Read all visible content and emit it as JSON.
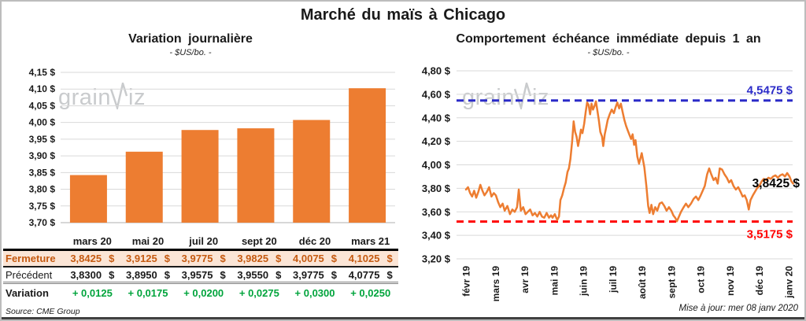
{
  "page": {
    "title": "Marché du maïs à Chicago",
    "update_note": "Mise à jour: mer 08 janv 2020",
    "watermark": {
      "prefix": "grain",
      "suffix": "iz"
    }
  },
  "colors": {
    "orange": "#ED7D31",
    "blue": "#2B2BC8",
    "red": "#FF0000",
    "green": "#00A43C",
    "fermeture_text": "#C55A11",
    "fermeture_bg": "#FBE5D6",
    "grid": "#D9D9D9",
    "axis": "#BFBFBF",
    "text": "#1a1a1a",
    "watermark": "#c9cbcd"
  },
  "chart_data": [
    {
      "type": "bar",
      "title": "Variation journalière",
      "subtitle": "- $US/bo. -",
      "categories": [
        "mars 20",
        "mai 20",
        "juil 20",
        "sept 20",
        "déc 20",
        "mars 21"
      ],
      "values": [
        3.8425,
        3.9125,
        3.9775,
        3.9825,
        4.0075,
        4.1025
      ],
      "ylim": [
        3.7,
        4.15
      ],
      "ytick_step": 0.05,
      "ytick_labels": [
        "4,15 $",
        "4,10 $",
        "4,05 $",
        "4,00 $",
        "3,95 $",
        "3,90 $",
        "3,85 $",
        "3,80 $",
        "3,75 $",
        "3,70 $"
      ],
      "grid": true,
      "legend": "none"
    },
    {
      "type": "line",
      "title": "Comportement échéance immédiate depuis 1 an",
      "subtitle": "- $US/bo. -",
      "x_tick_labels": [
        "févr 19",
        "mars 19",
        "avr 19",
        "mai 19",
        "juin 19",
        "juil 19",
        "août 19",
        "sept 19",
        "oct 19",
        "nov 19",
        "déc 19",
        "janv 20"
      ],
      "ylim": [
        3.2,
        4.8
      ],
      "ytick_step": 0.2,
      "ytick_labels": [
        "4,80 $",
        "4,60 $",
        "4,40 $",
        "4,20 $",
        "4,00 $",
        "3,80 $",
        "3,60 $",
        "3,40 $",
        "3,20 $"
      ],
      "grid": true,
      "legend": "none",
      "reference_lines": [
        {
          "name": "high",
          "value": 4.5475,
          "label": "4,5475 $",
          "position": "above"
        },
        {
          "name": "low",
          "value": 3.5175,
          "label": "3,5175 $",
          "position": "below"
        }
      ],
      "last_value": 3.8425,
      "last_value_label": "3,8425 $",
      "points": [
        [
          0.0,
          3.79
        ],
        [
          0.07,
          3.81
        ],
        [
          0.14,
          3.76
        ],
        [
          0.21,
          3.73
        ],
        [
          0.28,
          3.78
        ],
        [
          0.35,
          3.72
        ],
        [
          0.42,
          3.77
        ],
        [
          0.49,
          3.83
        ],
        [
          0.56,
          3.78
        ],
        [
          0.63,
          3.74
        ],
        [
          0.71,
          3.77
        ],
        [
          0.79,
          3.81
        ],
        [
          0.87,
          3.73
        ],
        [
          0.95,
          3.76
        ],
        [
          1.02,
          3.74
        ],
        [
          1.1,
          3.68
        ],
        [
          1.17,
          3.64
        ],
        [
          1.25,
          3.67
        ],
        [
          1.32,
          3.61
        ],
        [
          1.41,
          3.65
        ],
        [
          1.5,
          3.58
        ],
        [
          1.58,
          3.62
        ],
        [
          1.66,
          3.6
        ],
        [
          1.74,
          3.64
        ],
        [
          1.8,
          3.79
        ],
        [
          1.87,
          3.61
        ],
        [
          1.95,
          3.64
        ],
        [
          2.03,
          3.58
        ],
        [
          2.11,
          3.6
        ],
        [
          2.19,
          3.62
        ],
        [
          2.27,
          3.57
        ],
        [
          2.35,
          3.59
        ],
        [
          2.43,
          3.56
        ],
        [
          2.51,
          3.6
        ],
        [
          2.59,
          3.56
        ],
        [
          2.67,
          3.55
        ],
        [
          2.75,
          3.59
        ],
        [
          2.83,
          3.55
        ],
        [
          2.9,
          3.57
        ],
        [
          2.95,
          3.55
        ],
        [
          3.03,
          3.58
        ],
        [
          3.11,
          3.53
        ],
        [
          3.17,
          3.56
        ],
        [
          3.22,
          3.7
        ],
        [
          3.28,
          3.74
        ],
        [
          3.34,
          3.8
        ],
        [
          3.4,
          3.85
        ],
        [
          3.46,
          3.94
        ],
        [
          3.51,
          3.97
        ],
        [
          3.56,
          4.05
        ],
        [
          3.62,
          4.2
        ],
        [
          3.67,
          4.37
        ],
        [
          3.72,
          4.28
        ],
        [
          3.77,
          4.24
        ],
        [
          3.82,
          4.16
        ],
        [
          3.87,
          4.22
        ],
        [
          3.92,
          4.3
        ],
        [
          3.97,
          4.27
        ],
        [
          4.03,
          4.35
        ],
        [
          4.08,
          4.45
        ],
        [
          4.13,
          4.53
        ],
        [
          4.18,
          4.51
        ],
        [
          4.23,
          4.43
        ],
        [
          4.28,
          4.52
        ],
        [
          4.33,
          4.47
        ],
        [
          4.38,
          4.5
        ],
        [
          4.43,
          4.54
        ],
        [
          4.48,
          4.46
        ],
        [
          4.53,
          4.38
        ],
        [
          4.58,
          4.28
        ],
        [
          4.64,
          4.24
        ],
        [
          4.68,
          4.16
        ],
        [
          4.73,
          4.26
        ],
        [
          4.78,
          4.32
        ],
        [
          4.83,
          4.38
        ],
        [
          4.9,
          4.43
        ],
        [
          4.97,
          4.47
        ],
        [
          5.04,
          4.44
        ],
        [
          5.1,
          4.49
        ],
        [
          5.16,
          4.53
        ],
        [
          5.22,
          4.48
        ],
        [
          5.28,
          4.52
        ],
        [
          5.34,
          4.45
        ],
        [
          5.4,
          4.38
        ],
        [
          5.46,
          4.33
        ],
        [
          5.52,
          4.29
        ],
        [
          5.58,
          4.25
        ],
        [
          5.63,
          4.22
        ],
        [
          5.68,
          4.26
        ],
        [
          5.73,
          4.17
        ],
        [
          5.78,
          4.21
        ],
        [
          5.84,
          4.07
        ],
        [
          5.9,
          4.01
        ],
        [
          5.99,
          4.1
        ],
        [
          6.08,
          3.98
        ],
        [
          6.15,
          3.82
        ],
        [
          6.21,
          3.65
        ],
        [
          6.26,
          3.59
        ],
        [
          6.32,
          3.66
        ],
        [
          6.38,
          3.58
        ],
        [
          6.45,
          3.64
        ],
        [
          6.52,
          3.61
        ],
        [
          6.6,
          3.67
        ],
        [
          6.68,
          3.68
        ],
        [
          6.76,
          3.65
        ],
        [
          6.84,
          3.61
        ],
        [
          6.92,
          3.64
        ],
        [
          7.0,
          3.61
        ],
        [
          7.07,
          3.57
        ],
        [
          7.13,
          3.55
        ],
        [
          7.19,
          3.52
        ],
        [
          7.26,
          3.56
        ],
        [
          7.33,
          3.6
        ],
        [
          7.42,
          3.64
        ],
        [
          7.5,
          3.67
        ],
        [
          7.58,
          3.64
        ],
        [
          7.67,
          3.67
        ],
        [
          7.76,
          3.71
        ],
        [
          7.84,
          3.73
        ],
        [
          7.92,
          3.7
        ],
        [
          8.0,
          3.74
        ],
        [
          8.07,
          3.78
        ],
        [
          8.14,
          3.82
        ],
        [
          8.22,
          3.92
        ],
        [
          8.29,
          3.97
        ],
        [
          8.36,
          3.92
        ],
        [
          8.44,
          3.87
        ],
        [
          8.51,
          3.89
        ],
        [
          8.58,
          3.84
        ],
        [
          8.65,
          3.97
        ],
        [
          8.73,
          3.96
        ],
        [
          8.81,
          3.92
        ],
        [
          8.89,
          3.89
        ],
        [
          8.97,
          3.85
        ],
        [
          9.04,
          3.87
        ],
        [
          9.12,
          3.82
        ],
        [
          9.2,
          3.79
        ],
        [
          9.28,
          3.81
        ],
        [
          9.36,
          3.77
        ],
        [
          9.43,
          3.73
        ],
        [
          9.5,
          3.74
        ],
        [
          9.57,
          3.7
        ],
        [
          9.64,
          3.62
        ],
        [
          9.7,
          3.7
        ],
        [
          9.78,
          3.74
        ],
        [
          9.85,
          3.77
        ],
        [
          9.92,
          3.8
        ],
        [
          10.0,
          3.82
        ],
        [
          10.08,
          3.86
        ],
        [
          10.15,
          3.88
        ],
        [
          10.23,
          3.87
        ],
        [
          10.31,
          3.89
        ],
        [
          10.39,
          3.88
        ],
        [
          10.47,
          3.9
        ],
        [
          10.55,
          3.91
        ],
        [
          10.63,
          3.89
        ],
        [
          10.71,
          3.91
        ],
        [
          10.79,
          3.92
        ],
        [
          10.87,
          3.9
        ],
        [
          10.95,
          3.93
        ],
        [
          11.03,
          3.9
        ],
        [
          11.09,
          3.86
        ],
        [
          11.15,
          3.84
        ]
      ]
    },
    {
      "type": "table",
      "col_headers": [
        "mars 20",
        "mai 20",
        "juil 20",
        "sept 20",
        "déc 20",
        "mars 21"
      ],
      "rows": [
        {
          "label": "Fermeture",
          "style": "fermeture",
          "suffix": "$",
          "values": [
            "3,8425",
            "3,9125",
            "3,9775",
            "3,9825",
            "4,0075",
            "4,1025"
          ]
        },
        {
          "label": "Précédent",
          "style": "precedent",
          "suffix": "$",
          "values": [
            "3,8300",
            "3,8950",
            "3,9575",
            "3,9550",
            "3,9775",
            "4,0775"
          ]
        },
        {
          "label": "Variation",
          "style": "variation",
          "suffix": "",
          "values": [
            "+ 0,0125",
            "+ 0,0175",
            "+ 0,0200",
            "+ 0,0275",
            "+ 0,0300",
            "+ 0,0250"
          ]
        }
      ],
      "source": "Source: CME Group"
    }
  ]
}
